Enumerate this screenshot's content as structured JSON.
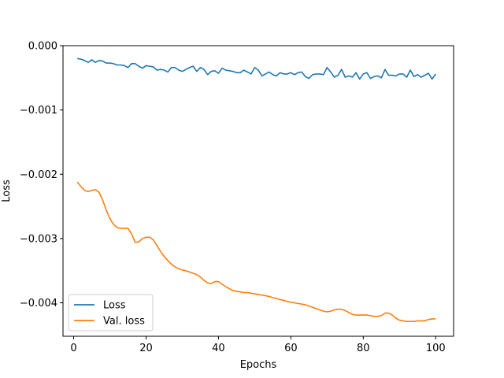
{
  "chart_data": {
    "type": "line",
    "title": "",
    "xlabel": "Epochs",
    "ylabel": "Loss",
    "xlim": [
      -2.95,
      104.95
    ],
    "ylim": [
      -0.00452,
      0.0
    ],
    "xticks": [
      0,
      20,
      40,
      60,
      80,
      100
    ],
    "xtick_labels": [
      "0",
      "20",
      "40",
      "60",
      "80",
      "100"
    ],
    "yticks": [
      0.0,
      -0.001,
      -0.002,
      -0.003,
      -0.004
    ],
    "ytick_labels": [
      "0.000",
      "−0.001",
      "−0.002",
      "−0.003",
      "−0.004"
    ],
    "grid": false,
    "legend_position": "lower-left",
    "x_start": 1,
    "x_step": 1,
    "series": [
      {
        "name": "Loss",
        "color": "#1f77b4",
        "values": [
          -0.0002,
          -0.00021,
          -0.00023,
          -0.00026,
          -0.00022,
          -0.00026,
          -0.00023,
          -0.00024,
          -0.00027,
          -0.00027,
          -0.00028,
          -0.0003,
          -0.0003,
          -0.00031,
          -0.00034,
          -0.00028,
          -0.00028,
          -0.00032,
          -0.00035,
          -0.00031,
          -0.00032,
          -0.00033,
          -0.00038,
          -0.00037,
          -0.00038,
          -0.00041,
          -0.00034,
          -0.00034,
          -0.00038,
          -0.0004,
          -0.00037,
          -0.00034,
          -0.00032,
          -0.0004,
          -0.00034,
          -0.00037,
          -0.00045,
          -0.0004,
          -0.00039,
          -0.00043,
          -0.00035,
          -0.00038,
          -0.00039,
          -0.0004,
          -0.00042,
          -0.00042,
          -0.00038,
          -0.00041,
          -0.00044,
          -0.00034,
          -0.00038,
          -0.00047,
          -0.00044,
          -0.00041,
          -0.00045,
          -0.00047,
          -0.00042,
          -0.00044,
          -0.00044,
          -0.00042,
          -0.00045,
          -0.00042,
          -0.00041,
          -0.00048,
          -0.00051,
          -0.00045,
          -0.00044,
          -0.00044,
          -0.00045,
          -0.00034,
          -0.00041,
          -0.00049,
          -0.00046,
          -0.00037,
          -0.00049,
          -0.00047,
          -0.00049,
          -0.00042,
          -0.00052,
          -0.00044,
          -0.00042,
          -0.00051,
          -0.00048,
          -0.00047,
          -0.0005,
          -0.00037,
          -0.00046,
          -0.00046,
          -0.00047,
          -0.00044,
          -0.00044,
          -0.00049,
          -0.00038,
          -0.00048,
          -0.00045,
          -0.00049,
          -0.00046,
          -0.00043,
          -0.00052,
          -0.00044
        ]
      },
      {
        "name": "Val. loss",
        "color": "#ff7f0e",
        "values": [
          -0.00212,
          -0.00219,
          -0.00225,
          -0.00227,
          -0.00225,
          -0.00224,
          -0.00228,
          -0.0024,
          -0.00256,
          -0.00269,
          -0.00278,
          -0.00283,
          -0.00284,
          -0.00284,
          -0.00284,
          -0.00293,
          -0.00306,
          -0.00305,
          -0.003,
          -0.00298,
          -0.00298,
          -0.00302,
          -0.00311,
          -0.0032,
          -0.00328,
          -0.00334,
          -0.0034,
          -0.00344,
          -0.00347,
          -0.00349,
          -0.0035,
          -0.00352,
          -0.00354,
          -0.00356,
          -0.0036,
          -0.00365,
          -0.00369,
          -0.0037,
          -0.00367,
          -0.00367,
          -0.00371,
          -0.00375,
          -0.00378,
          -0.00381,
          -0.00382,
          -0.00383,
          -0.00384,
          -0.00384,
          -0.00385,
          -0.00386,
          -0.00387,
          -0.00388,
          -0.00389,
          -0.0039,
          -0.00392,
          -0.00393,
          -0.00395,
          -0.00396,
          -0.00398,
          -0.00399,
          -0.004,
          -0.00401,
          -0.00402,
          -0.00403,
          -0.00405,
          -0.00407,
          -0.00409,
          -0.00411,
          -0.00413,
          -0.00414,
          -0.00413,
          -0.00411,
          -0.0041,
          -0.0041,
          -0.00412,
          -0.00415,
          -0.00418,
          -0.00419,
          -0.00419,
          -0.00419,
          -0.00419,
          -0.0042,
          -0.00421,
          -0.00421,
          -0.0042,
          -0.00416,
          -0.00416,
          -0.00419,
          -0.00424,
          -0.00427,
          -0.00428,
          -0.00429,
          -0.00429,
          -0.00429,
          -0.00428,
          -0.00428,
          -0.00428,
          -0.00426,
          -0.00425,
          -0.00425
        ]
      }
    ]
  }
}
